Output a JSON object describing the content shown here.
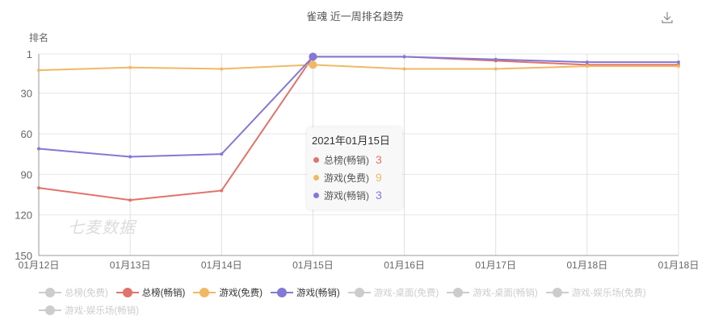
{
  "header": {
    "title": "雀魂 近一周排名趋势",
    "download_icon": "download-icon"
  },
  "watermark": "七麦数据",
  "tooltip": {
    "date": "2021年01月15日",
    "rows": [
      {
        "label": "总榜(畅销)",
        "value": "3",
        "color": "#e0736a"
      },
      {
        "label": "游戏(免费)",
        "value": "9",
        "color": "#f0b865"
      },
      {
        "label": "游戏(畅销)",
        "value": "3",
        "color": "#8378d6"
      }
    ]
  },
  "legend": [
    {
      "label": "总榜(免费)",
      "color": "#cccccc",
      "active": false
    },
    {
      "label": "总榜(畅销)",
      "color": "#e0736a",
      "active": true
    },
    {
      "label": "游戏(免费)",
      "color": "#f0b865",
      "active": true
    },
    {
      "label": "游戏(畅销)",
      "color": "#8378d6",
      "active": true
    },
    {
      "label": "游戏-桌面(免费)",
      "color": "#cccccc",
      "active": false
    },
    {
      "label": "游戏-桌面(畅销)",
      "color": "#cccccc",
      "active": false
    },
    {
      "label": "游戏-娱乐场(免费)",
      "color": "#cccccc",
      "active": false
    },
    {
      "label": "游戏-娱乐场(畅销)",
      "color": "#cccccc",
      "active": false
    }
  ],
  "chart_data": {
    "type": "line",
    "title": "雀魂 近一周排名趋势",
    "xlabel": "",
    "ylabel": "排名",
    "y_inverted": true,
    "ylim": [
      1,
      150
    ],
    "yticks": [
      1,
      30,
      60,
      90,
      120,
      150
    ],
    "grid": true,
    "legend_position": "bottom",
    "categories": [
      "01月12日",
      "01月13日",
      "01月14日",
      "01月15日",
      "01月16日",
      "01月17日",
      "01月18日",
      "01月18日"
    ],
    "series": [
      {
        "name": "总榜(畅销)",
        "color": "#e0736a",
        "values": [
          100,
          109,
          102,
          3,
          3,
          6,
          9,
          9
        ]
      },
      {
        "name": "游戏(免费)",
        "color": "#f0b865",
        "values": [
          13,
          11,
          12,
          9,
          12,
          12,
          10,
          10
        ]
      },
      {
        "name": "游戏(畅销)",
        "color": "#8378d6",
        "values": [
          71,
          77,
          75,
          3,
          3,
          5,
          7,
          7
        ]
      }
    ],
    "hidden_series": [
      "总榜(免费)",
      "游戏-桌面(免费)",
      "游戏-桌面(畅销)",
      "游戏-娱乐场(免费)",
      "游戏-娱乐场(畅销)"
    ],
    "highlighted_category_index": 3
  }
}
